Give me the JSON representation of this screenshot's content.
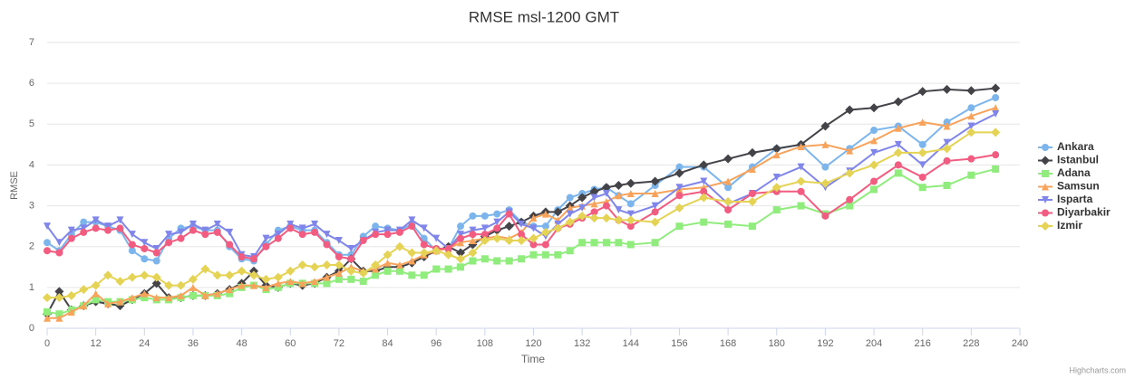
{
  "chart_data": {
    "type": "line",
    "title": "RMSE msl-1200 GMT",
    "x_label": "Time",
    "y_label": "RMSE",
    "credits": "Highcharts.com",
    "xlim": [
      0,
      240
    ],
    "xticks": [
      0,
      12,
      24,
      36,
      48,
      60,
      72,
      84,
      96,
      108,
      120,
      132,
      144,
      156,
      168,
      180,
      192,
      204,
      216,
      228,
      240
    ],
    "ylim": [
      0,
      7
    ],
    "yticks": [
      0,
      1,
      2,
      3,
      4,
      5,
      6,
      7
    ],
    "grid": true,
    "legend": "right",
    "x": [
      0,
      3,
      6,
      9,
      12,
      15,
      18,
      21,
      24,
      27,
      30,
      33,
      36,
      39,
      42,
      45,
      48,
      51,
      54,
      57,
      60,
      63,
      66,
      69,
      72,
      75,
      78,
      81,
      84,
      87,
      90,
      93,
      96,
      99,
      102,
      105,
      108,
      111,
      114,
      117,
      120,
      123,
      126,
      129,
      132,
      135,
      138,
      141,
      144,
      150,
      156,
      162,
      168,
      174,
      180,
      186,
      192,
      198,
      204,
      210,
      216,
      222,
      228,
      234
    ],
    "series": [
      {
        "name": "Ankara",
        "color": "#7cb5ec",
        "symbol": "circle",
        "values": [
          2.1,
          1.9,
          2.3,
          2.6,
          2.6,
          2.5,
          2.4,
          1.9,
          1.7,
          1.65,
          2.2,
          2.45,
          2.5,
          2.4,
          2.4,
          2.0,
          1.7,
          1.65,
          2.05,
          2.4,
          2.5,
          2.4,
          2.4,
          2.1,
          1.8,
          1.8,
          2.25,
          2.5,
          2.45,
          2.4,
          2.55,
          2.2,
          1.9,
          1.95,
          2.5,
          2.75,
          2.75,
          2.8,
          2.9,
          2.6,
          2.5,
          2.5,
          2.9,
          3.2,
          3.3,
          3.4,
          3.45,
          3.25,
          3.05,
          3.5,
          3.95,
          3.95,
          3.45,
          3.95,
          4.4,
          4.5,
          3.95,
          4.4,
          4.85,
          4.95,
          4.5,
          5.05,
          5.4,
          5.65
        ]
      },
      {
        "name": "Istanbul",
        "color": "#434348",
        "symbol": "diamond",
        "values": [
          0.35,
          0.9,
          0.45,
          0.55,
          0.65,
          0.6,
          0.55,
          0.7,
          0.85,
          1.1,
          0.75,
          0.75,
          0.8,
          0.8,
          0.85,
          0.95,
          1.1,
          1.4,
          1.05,
          1.0,
          1.1,
          1.05,
          1.1,
          1.25,
          1.4,
          1.7,
          1.4,
          1.4,
          1.5,
          1.5,
          1.6,
          1.75,
          1.9,
          2.0,
          1.85,
          2.05,
          2.25,
          2.4,
          2.5,
          2.6,
          2.75,
          2.85,
          2.85,
          3.0,
          3.2,
          3.35,
          3.45,
          3.5,
          3.55,
          3.6,
          3.8,
          4.0,
          4.15,
          4.3,
          4.4,
          4.5,
          4.95,
          5.35,
          5.4,
          5.55,
          5.8,
          5.85,
          5.82,
          5.88
        ]
      },
      {
        "name": "Adana",
        "color": "#90ed7d",
        "symbol": "square",
        "values": [
          0.4,
          0.35,
          0.45,
          0.55,
          0.7,
          0.65,
          0.65,
          0.7,
          0.75,
          0.7,
          0.7,
          0.75,
          0.8,
          0.8,
          0.8,
          0.85,
          1.0,
          1.05,
          0.95,
          1.0,
          1.1,
          1.1,
          1.1,
          1.1,
          1.2,
          1.2,
          1.15,
          1.3,
          1.4,
          1.4,
          1.3,
          1.3,
          1.45,
          1.45,
          1.5,
          1.65,
          1.7,
          1.65,
          1.65,
          1.7,
          1.8,
          1.8,
          1.8,
          1.9,
          2.1,
          2.1,
          2.1,
          2.1,
          2.05,
          2.1,
          2.5,
          2.6,
          2.55,
          2.5,
          2.9,
          3.0,
          2.8,
          3.0,
          3.4,
          3.8,
          3.45,
          3.5,
          3.75,
          3.9
        ]
      },
      {
        "name": "Samsun",
        "color": "#f7a35c",
        "symbol": "triangle",
        "values": [
          0.25,
          0.25,
          0.4,
          0.55,
          0.85,
          0.6,
          0.65,
          0.75,
          0.85,
          0.75,
          0.75,
          0.8,
          1.0,
          0.8,
          0.85,
          0.95,
          1.05,
          1.05,
          1.0,
          1.1,
          1.15,
          1.1,
          1.15,
          1.25,
          1.35,
          1.5,
          1.4,
          1.45,
          1.6,
          1.55,
          1.65,
          1.8,
          1.9,
          1.95,
          2.1,
          2.15,
          2.2,
          2.25,
          2.2,
          2.35,
          2.7,
          2.8,
          2.65,
          2.95,
          3.0,
          3.05,
          3.1,
          3.25,
          3.3,
          3.3,
          3.4,
          3.45,
          3.6,
          3.9,
          4.25,
          4.45,
          4.5,
          4.35,
          4.6,
          4.9,
          5.05,
          4.95,
          5.2,
          5.4
        ]
      },
      {
        "name": "Isparta",
        "color": "#8085e9",
        "symbol": "triangle-down",
        "values": [
          2.5,
          2.1,
          2.4,
          2.45,
          2.65,
          2.5,
          2.65,
          2.3,
          2.1,
          1.95,
          2.3,
          2.35,
          2.55,
          2.4,
          2.55,
          2.35,
          1.8,
          1.75,
          2.2,
          2.3,
          2.55,
          2.45,
          2.55,
          2.3,
          2.15,
          1.95,
          2.15,
          2.35,
          2.4,
          2.4,
          2.65,
          2.45,
          2.2,
          1.95,
          2.3,
          2.4,
          2.45,
          2.6,
          2.85,
          2.55,
          2.45,
          2.25,
          2.55,
          2.8,
          2.95,
          3.2,
          3.3,
          2.9,
          2.8,
          3.0,
          3.45,
          3.6,
          3.05,
          3.3,
          3.7,
          3.95,
          3.45,
          3.85,
          4.3,
          4.5,
          4.0,
          4.55,
          4.95,
          5.25
        ]
      },
      {
        "name": "Diyarbakir",
        "color": "#f15c80",
        "symbol": "circle",
        "values": [
          1.9,
          1.85,
          2.2,
          2.35,
          2.45,
          2.4,
          2.45,
          2.05,
          1.95,
          1.85,
          2.1,
          2.2,
          2.4,
          2.3,
          2.35,
          2.05,
          1.75,
          1.7,
          2.0,
          2.2,
          2.45,
          2.3,
          2.35,
          2.05,
          1.75,
          1.7,
          2.15,
          2.3,
          2.3,
          2.35,
          2.5,
          2.05,
          1.95,
          1.95,
          2.2,
          2.3,
          2.3,
          2.45,
          2.8,
          2.3,
          2.05,
          2.05,
          2.45,
          2.55,
          2.7,
          2.85,
          3.0,
          2.65,
          2.5,
          2.85,
          3.25,
          3.35,
          2.9,
          3.3,
          3.35,
          3.35,
          2.75,
          3.15,
          3.6,
          4.0,
          3.7,
          4.1,
          4.15,
          4.25
        ]
      },
      {
        "name": "Izmir",
        "color": "#e4d354",
        "symbol": "diamond",
        "values": [
          0.75,
          0.75,
          0.8,
          0.95,
          1.05,
          1.3,
          1.15,
          1.25,
          1.3,
          1.25,
          1.05,
          1.05,
          1.2,
          1.45,
          1.3,
          1.3,
          1.4,
          1.3,
          1.2,
          1.25,
          1.4,
          1.55,
          1.5,
          1.55,
          1.55,
          1.4,
          1.35,
          1.55,
          1.8,
          2.0,
          1.85,
          1.85,
          1.9,
          1.8,
          1.7,
          1.85,
          2.15,
          2.2,
          2.15,
          2.15,
          2.2,
          2.35,
          2.45,
          2.6,
          2.75,
          2.7,
          2.7,
          2.65,
          2.65,
          2.6,
          2.95,
          3.2,
          3.1,
          3.1,
          3.45,
          3.6,
          3.55,
          3.8,
          4.0,
          4.3,
          4.3,
          4.4,
          4.8,
          4.8
        ]
      }
    ]
  }
}
